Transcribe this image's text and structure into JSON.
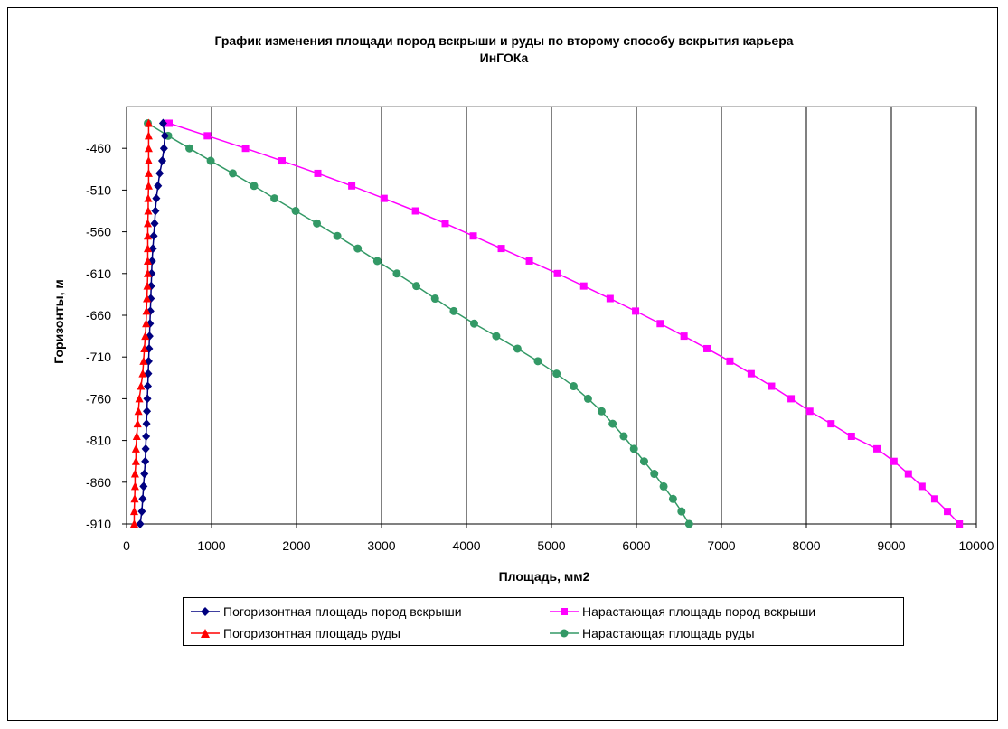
{
  "chart_data": {
    "type": "line",
    "title_lines": [
      "График изменения площади пород вскрыши и руды по второму способу вскрытия карьера",
      "ИнГОКа"
    ],
    "xlabel": "Площадь, мм2",
    "ylabel": "Горизонты, м",
    "xlim": [
      0,
      10000
    ],
    "ylim": [
      -910,
      -410
    ],
    "x_ticks": [
      0,
      1000,
      2000,
      3000,
      4000,
      5000,
      6000,
      7000,
      8000,
      9000,
      10000
    ],
    "y_ticks": [
      -460,
      -510,
      -560,
      -610,
      -660,
      -710,
      -760,
      -810,
      -860,
      -910
    ],
    "grid": "vertical",
    "legend_position": "bottom",
    "y": [
      -430,
      -445,
      -460,
      -475,
      -490,
      -505,
      -520,
      -535,
      -550,
      -565,
      -580,
      -595,
      -610,
      -625,
      -640,
      -655,
      -670,
      -685,
      -700,
      -715,
      -730,
      -745,
      -760,
      -775,
      -790,
      -805,
      -820,
      -835,
      -850,
      -865,
      -880,
      -895,
      -910
    ],
    "series": [
      {
        "name": "Погоризонтная площадь пород вскрыши",
        "color": "#000080",
        "marker": "diamond",
        "x": [
          430,
          450,
          440,
          420,
          390,
          370,
          350,
          340,
          330,
          320,
          310,
          300,
          295,
          290,
          285,
          280,
          275,
          270,
          265,
          260,
          255,
          250,
          245,
          240,
          235,
          230,
          225,
          220,
          210,
          200,
          190,
          180,
          160
        ]
      },
      {
        "name": "Нарастающая площадь пород вскрыши",
        "color": "#FF00FF",
        "marker": "square",
        "x": [
          500,
          950,
          1400,
          1830,
          2250,
          2650,
          3030,
          3400,
          3750,
          4080,
          4410,
          4740,
          5070,
          5380,
          5690,
          5990,
          6280,
          6560,
          6830,
          7100,
          7350,
          7590,
          7820,
          8040,
          8290,
          8530,
          8830,
          9030,
          9200,
          9360,
          9510,
          9660,
          9800
        ]
      },
      {
        "name": "Погоризонтная площадь руды",
        "color": "#FF0000",
        "marker": "triangle",
        "x": [
          260,
          260,
          260,
          260,
          260,
          260,
          255,
          255,
          250,
          250,
          250,
          250,
          250,
          245,
          240,
          235,
          230,
          220,
          210,
          200,
          190,
          170,
          150,
          140,
          130,
          120,
          110,
          110,
          100,
          100,
          95,
          90,
          90
        ]
      },
      {
        "name": "Нарастающая площадь руды",
        "color": "#339966",
        "marker": "circle",
        "x": [
          250,
          490,
          740,
          990,
          1250,
          1500,
          1740,
          1990,
          2240,
          2480,
          2720,
          2950,
          3180,
          3410,
          3630,
          3850,
          4090,
          4350,
          4600,
          4840,
          5060,
          5260,
          5430,
          5590,
          5720,
          5850,
          5970,
          6090,
          6210,
          6320,
          6430,
          6530,
          6620
        ]
      }
    ]
  }
}
